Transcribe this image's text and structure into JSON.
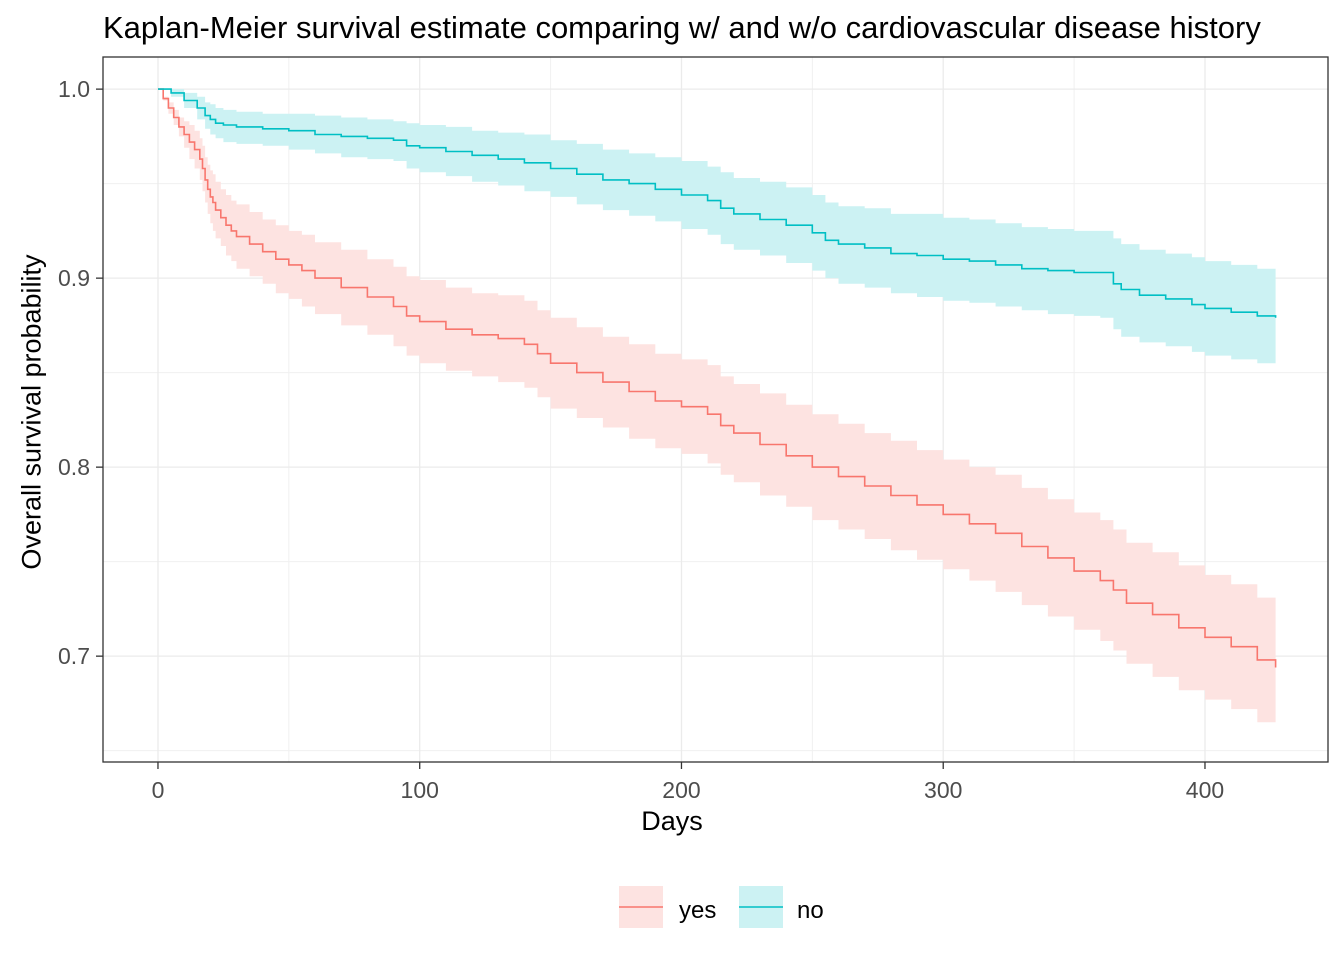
{
  "chart_data": {
    "type": "line",
    "title": "Kaplan-Meier survival estimate comparing w/ and w/o cardiovascular disease history",
    "xlabel": "Days",
    "ylabel": "Overall survival probability",
    "xlim": [
      -21,
      447
    ],
    "ylim": [
      0.644,
      1.017
    ],
    "x_ticks": [
      0,
      100,
      200,
      300,
      400
    ],
    "y_ticks": [
      0.7,
      0.8,
      0.9,
      1.0
    ],
    "x_tick_labels": [
      "0",
      "100",
      "200",
      "300",
      "400"
    ],
    "y_tick_labels": [
      "0.7",
      "0.8",
      "0.9",
      "1.0"
    ],
    "grid": true,
    "legend_position": "bottom",
    "step": true,
    "series": [
      {
        "name": "yes",
        "color": "#F8766D",
        "band_color": "#FDE3E1",
        "x": [
          0,
          2,
          4,
          6,
          8,
          10,
          12,
          14,
          16,
          17,
          18,
          19,
          20,
          21,
          22,
          24,
          26,
          28,
          30,
          35,
          40,
          45,
          50,
          55,
          60,
          70,
          80,
          90,
          95,
          100,
          110,
          120,
          130,
          140,
          145,
          150,
          160,
          170,
          180,
          190,
          200,
          210,
          215,
          220,
          230,
          240,
          250,
          260,
          270,
          280,
          290,
          300,
          310,
          320,
          330,
          340,
          350,
          360,
          365,
          370,
          380,
          390,
          400,
          410,
          420,
          427
        ],
        "y": [
          1.0,
          0.995,
          0.99,
          0.985,
          0.98,
          0.976,
          0.972,
          0.968,
          0.963,
          0.958,
          0.952,
          0.947,
          0.943,
          0.94,
          0.936,
          0.932,
          0.928,
          0.925,
          0.922,
          0.918,
          0.914,
          0.91,
          0.907,
          0.904,
          0.9,
          0.895,
          0.89,
          0.885,
          0.88,
          0.877,
          0.873,
          0.87,
          0.868,
          0.865,
          0.86,
          0.855,
          0.85,
          0.845,
          0.84,
          0.835,
          0.832,
          0.828,
          0.822,
          0.818,
          0.812,
          0.806,
          0.8,
          0.795,
          0.79,
          0.785,
          0.78,
          0.775,
          0.77,
          0.765,
          0.758,
          0.752,
          0.745,
          0.74,
          0.735,
          0.728,
          0.722,
          0.715,
          0.71,
          0.705,
          0.698,
          0.694
        ],
        "lower": [
          1.0,
          0.994,
          0.987,
          0.981,
          0.975,
          0.969,
          0.963,
          0.958,
          0.952,
          0.946,
          0.94,
          0.934,
          0.929,
          0.925,
          0.921,
          0.917,
          0.912,
          0.909,
          0.905,
          0.901,
          0.897,
          0.892,
          0.889,
          0.885,
          0.881,
          0.875,
          0.87,
          0.864,
          0.859,
          0.855,
          0.851,
          0.848,
          0.845,
          0.842,
          0.837,
          0.831,
          0.826,
          0.821,
          0.815,
          0.81,
          0.807,
          0.802,
          0.796,
          0.792,
          0.785,
          0.779,
          0.772,
          0.767,
          0.762,
          0.756,
          0.751,
          0.746,
          0.74,
          0.734,
          0.727,
          0.721,
          0.714,
          0.708,
          0.703,
          0.696,
          0.689,
          0.682,
          0.677,
          0.672,
          0.665,
          0.661
        ],
        "upper": [
          1.0,
          0.996,
          0.993,
          0.989,
          0.985,
          0.983,
          0.981,
          0.978,
          0.974,
          0.97,
          0.964,
          0.96,
          0.957,
          0.955,
          0.951,
          0.947,
          0.944,
          0.941,
          0.939,
          0.935,
          0.931,
          0.928,
          0.925,
          0.923,
          0.919,
          0.915,
          0.91,
          0.906,
          0.901,
          0.899,
          0.895,
          0.892,
          0.891,
          0.888,
          0.883,
          0.879,
          0.874,
          0.869,
          0.865,
          0.86,
          0.857,
          0.854,
          0.848,
          0.844,
          0.839,
          0.833,
          0.828,
          0.823,
          0.818,
          0.814,
          0.809,
          0.804,
          0.8,
          0.796,
          0.789,
          0.783,
          0.776,
          0.772,
          0.767,
          0.76,
          0.755,
          0.748,
          0.743,
          0.738,
          0.731,
          0.727
        ]
      },
      {
        "name": "no",
        "color": "#00BFC4",
        "band_color": "#CCF2F3",
        "x": [
          0,
          5,
          10,
          15,
          18,
          20,
          22,
          25,
          30,
          40,
          50,
          60,
          70,
          80,
          90,
          95,
          100,
          110,
          120,
          130,
          140,
          150,
          160,
          170,
          180,
          190,
          200,
          210,
          215,
          220,
          230,
          240,
          250,
          255,
          260,
          270,
          280,
          290,
          300,
          310,
          320,
          330,
          340,
          350,
          360,
          365,
          368,
          375,
          385,
          395,
          400,
          410,
          420,
          427
        ],
        "y": [
          1.0,
          0.998,
          0.994,
          0.99,
          0.986,
          0.984,
          0.982,
          0.981,
          0.98,
          0.979,
          0.978,
          0.976,
          0.975,
          0.974,
          0.973,
          0.97,
          0.969,
          0.967,
          0.965,
          0.963,
          0.961,
          0.958,
          0.955,
          0.952,
          0.95,
          0.947,
          0.944,
          0.941,
          0.937,
          0.934,
          0.931,
          0.928,
          0.924,
          0.92,
          0.918,
          0.916,
          0.913,
          0.912,
          0.91,
          0.909,
          0.907,
          0.905,
          0.904,
          0.903,
          0.903,
          0.897,
          0.894,
          0.891,
          0.889,
          0.886,
          0.884,
          0.882,
          0.88,
          0.879
        ],
        "lower": [
          1.0,
          0.996,
          0.99,
          0.984,
          0.979,
          0.976,
          0.974,
          0.972,
          0.971,
          0.97,
          0.968,
          0.966,
          0.964,
          0.963,
          0.962,
          0.958,
          0.956,
          0.954,
          0.951,
          0.949,
          0.946,
          0.943,
          0.939,
          0.936,
          0.933,
          0.93,
          0.926,
          0.923,
          0.918,
          0.915,
          0.912,
          0.908,
          0.904,
          0.9,
          0.897,
          0.895,
          0.892,
          0.89,
          0.888,
          0.887,
          0.885,
          0.883,
          0.881,
          0.88,
          0.879,
          0.873,
          0.869,
          0.866,
          0.864,
          0.861,
          0.859,
          0.857,
          0.855,
          0.854
        ],
        "upper": [
          1.0,
          1.0,
          0.998,
          0.996,
          0.993,
          0.992,
          0.99,
          0.989,
          0.988,
          0.987,
          0.987,
          0.986,
          0.985,
          0.984,
          0.983,
          0.982,
          0.981,
          0.98,
          0.978,
          0.977,
          0.976,
          0.973,
          0.971,
          0.968,
          0.966,
          0.964,
          0.962,
          0.959,
          0.956,
          0.953,
          0.951,
          0.948,
          0.944,
          0.94,
          0.938,
          0.937,
          0.934,
          0.934,
          0.932,
          0.931,
          0.929,
          0.927,
          0.926,
          0.925,
          0.925,
          0.921,
          0.918,
          0.915,
          0.913,
          0.911,
          0.909,
          0.907,
          0.905,
          0.904
        ]
      }
    ]
  }
}
